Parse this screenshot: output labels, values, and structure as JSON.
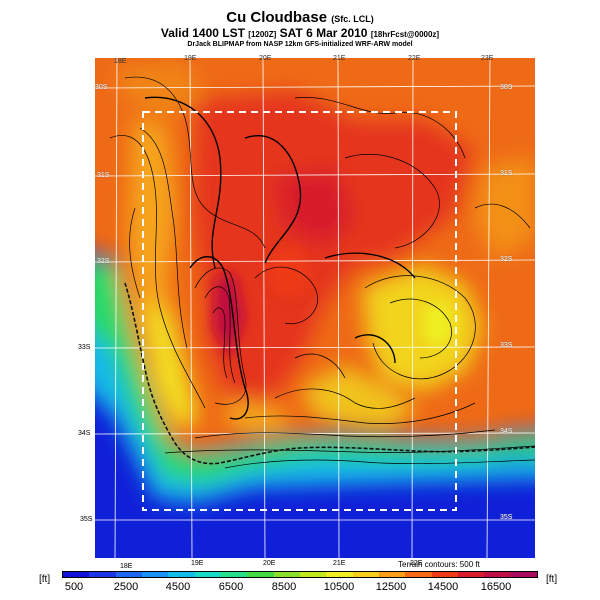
{
  "header": {
    "title": "Cu Cloudbase",
    "title_suffix": "(Sfc. LCL)",
    "valid_line": "Valid 1400 LST",
    "valid_code": "[1200Z]",
    "date": "SAT 6 Mar 2010",
    "forecast_code": "[18hrFcst@0000z]",
    "source_line": "DrJack BLIPMAP from NASP 12km GFS-initialized WRF-ARW model"
  },
  "longitude_labels_bottom": [
    "18E",
    "19E",
    "20E",
    "21E",
    "22E"
  ],
  "longitude_labels_top": [
    "18E",
    "19E",
    "20E",
    "21E",
    "22E",
    "23E"
  ],
  "latitude_labels_right": [
    "30S",
    "31S",
    "32S",
    "33S",
    "34S",
    "35S"
  ],
  "latitude_labels_left": [
    "30S",
    "31S",
    "32S",
    "33S",
    "34S",
    "35S"
  ],
  "terrain_note": "Terrain contours: 500 ft",
  "colorbar": {
    "unit_left": "[ft]",
    "unit_right": "[ft]",
    "labels": [
      "500",
      "2500",
      "4500",
      "6500",
      "8500",
      "10500",
      "12500",
      "14500",
      "16500"
    ],
    "colors": [
      "#1010d8",
      "#1a36e8",
      "#1f66f0",
      "#1a94f2",
      "#13bfe8",
      "#19dcc8",
      "#28e08a",
      "#45d945",
      "#8ae02c",
      "#c2e81e",
      "#eeee22",
      "#f8cf1c",
      "#fa9f1a",
      "#f76a18",
      "#ee3a18",
      "#d81c2c",
      "#c01048",
      "#a80c60"
    ]
  }
}
